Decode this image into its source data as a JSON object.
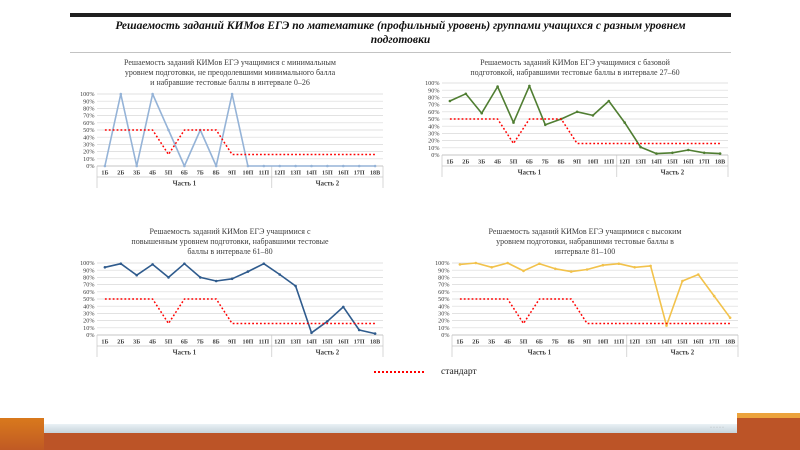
{
  "slide": {
    "title": "Решаемость заданий КИМов ЕГЭ по математике (профильный уровень) группами учащихся с разным уровнем подготовки",
    "title_lines": [
      "Решаемость заданий КИМов ЕГЭ по математике (профильный уровень) группами учащихся с разным уровнем",
      "подготовки"
    ]
  },
  "legend": {
    "label": "стандарт",
    "series_name": "стандарт",
    "style": "dotted"
  },
  "footer": {
    "tiny_marks": "·····"
  },
  "theme": {
    "accent_band": "#BC5427",
    "left_block": "#D9791C",
    "right_gold": "#ECA33C",
    "standard_red": "#FF0000",
    "gridline": "#D9D9D9",
    "axis_line": "#B3B3B3",
    "chart_text": "#3D3D3D"
  },
  "chart_data": [
    {
      "type": "line",
      "title": "Решаемость заданий КИМов ЕГЭ учащимися с минимальным уровнем подготовки, не преодолевшими минимального балла и набравшие тестовые баллы в интервале 0–26",
      "title_lines": [
        "Решаемость заданий КИМов ЕГЭ учащимися с минимальным",
        "уровнем подготовки, не преодолевшими минимального балла",
        "и набравшие тестовые баллы в интервале 0–26"
      ],
      "categories": [
        "1Б",
        "2Б",
        "3Б",
        "4Б",
        "5П",
        "6Б",
        "7Б",
        "8Б",
        "9П",
        "10П",
        "11П",
        "12П",
        "13П",
        "14П",
        "15П",
        "16П",
        "17П",
        "18В"
      ],
      "x_group_labels": [
        {
          "label": "Часть 1",
          "count": 11
        },
        {
          "label": "Часть 2",
          "count": 7
        }
      ],
      "ylim": [
        0,
        100
      ],
      "ytick_labels": [
        "0%",
        "10%",
        "20%",
        "30%",
        "40%",
        "50%",
        "60%",
        "70%",
        "80%",
        "90%",
        "100%"
      ],
      "grid": true,
      "series": [
        {
          "name": "0–26",
          "color": "#95B3D7",
          "marker": true,
          "values": [
            0,
            100,
            0,
            100,
            50,
            0,
            50,
            0,
            100,
            0,
            0,
            0,
            0,
            0,
            0,
            0,
            0,
            0
          ]
        },
        {
          "name": "стандарт",
          "color": "#FF0000",
          "style": "dotted",
          "values": [
            50,
            50,
            50,
            50,
            16,
            50,
            50,
            50,
            16,
            16,
            16,
            16,
            16,
            16,
            16,
            16,
            16,
            16
          ]
        }
      ]
    },
    {
      "type": "line",
      "title": "Решаемость заданий КИМов ЕГЭ учащимися с базовой подготовкой, набравшими тестовые баллы в интервале 27–60",
      "title_lines": [
        "Решаемость заданий КИМов ЕГЭ учащимися с базовой",
        "подготовкой,  набравшими тестовые баллы в интервале 27–60"
      ],
      "categories": [
        "1Б",
        "2Б",
        "3Б",
        "4Б",
        "5П",
        "6Б",
        "7Б",
        "8Б",
        "9П",
        "10П",
        "11П",
        "12П",
        "13П",
        "14П",
        "15П",
        "16П",
        "17П",
        "18В"
      ],
      "x_group_labels": [
        {
          "label": "Часть 1",
          "count": 11
        },
        {
          "label": "Часть 2",
          "count": 7
        }
      ],
      "ylim": [
        0,
        100
      ],
      "ytick_labels": [
        "0%",
        "10%",
        "20%",
        "30%",
        "40%",
        "50%",
        "60%",
        "70%",
        "80%",
        "90%",
        "100%"
      ],
      "grid": true,
      "series": [
        {
          "name": "27–60",
          "color": "#507E32",
          "marker": true,
          "values": [
            75,
            85,
            58,
            95,
            45,
            96,
            42,
            50,
            60,
            55,
            75,
            45,
            11,
            2,
            3,
            7,
            3,
            2
          ]
        },
        {
          "name": "стандарт",
          "color": "#FF0000",
          "style": "dotted",
          "values": [
            50,
            50,
            50,
            50,
            16,
            50,
            50,
            50,
            16,
            16,
            16,
            16,
            16,
            16,
            16,
            16,
            16,
            16
          ]
        }
      ]
    },
    {
      "type": "line",
      "title": "Решаемость заданий КИМов ЕГЭ учащимися с повышенным уровнем подготовки, набравшими тестовые баллы в интервале 61–80",
      "title_lines": [
        "Решаемость заданий КИМов ЕГЭ учащимися  с",
        "повышенным уровнем подготовки,  набравшими тестовые",
        "баллы в интервале 61–80"
      ],
      "categories": [
        "1Б",
        "2Б",
        "3Б",
        "4Б",
        "5П",
        "6Б",
        "7Б",
        "8Б",
        "9П",
        "10П",
        "11П",
        "12П",
        "13П",
        "14П",
        "15П",
        "16П",
        "17П",
        "18В"
      ],
      "x_group_labels": [
        {
          "label": "Часть 1",
          "count": 11
        },
        {
          "label": "Часть 2",
          "count": 7
        }
      ],
      "ylim": [
        0,
        100
      ],
      "ytick_labels": [
        "0%",
        "10%",
        "20%",
        "30%",
        "40%",
        "50%",
        "60%",
        "70%",
        "80%",
        "90%",
        "100%"
      ],
      "grid": true,
      "series": [
        {
          "name": "61–80",
          "color": "#2F5B8D",
          "marker": true,
          "values": [
            94,
            99,
            83,
            98,
            80,
            99,
            80,
            75,
            78,
            88,
            99,
            84,
            68,
            3,
            19,
            39,
            7,
            2
          ]
        },
        {
          "name": "стандарт",
          "color": "#FF0000",
          "style": "dotted",
          "values": [
            50,
            50,
            50,
            50,
            16,
            50,
            50,
            50,
            16,
            16,
            16,
            16,
            16,
            16,
            16,
            16,
            16,
            16
          ]
        }
      ]
    },
    {
      "type": "line",
      "title": "Решаемость заданий КИМов ЕГЭ учащимися с высоким уровнем подготовки, набравшими тестовые баллы в интервале 81–100",
      "title_lines": [
        "Решаемость заданий КИМов ЕГЭ учащимися  с высоким",
        "уровнем подготовки,  набравшими тестовые баллы в",
        "интервале 81–100"
      ],
      "categories": [
        "1Б",
        "2Б",
        "3Б",
        "4Б",
        "5П",
        "6Б",
        "7Б",
        "8Б",
        "9П",
        "10П",
        "11П",
        "12П",
        "13П",
        "14П",
        "15П",
        "16П",
        "17П",
        "18В"
      ],
      "x_group_labels": [
        {
          "label": "Часть 1",
          "count": 11
        },
        {
          "label": "Часть 2",
          "count": 7
        }
      ],
      "ylim": [
        0,
        100
      ],
      "ytick_labels": [
        "0%",
        "10%",
        "20%",
        "30%",
        "40%",
        "50%",
        "60%",
        "70%",
        "80%",
        "90%",
        "100%"
      ],
      "grid": true,
      "series": [
        {
          "name": "81–100",
          "color": "#F2C24B",
          "marker": true,
          "values": [
            98,
            100,
            94,
            100,
            89,
            99,
            92,
            88,
            91,
            97,
            99,
            94,
            96,
            13,
            75,
            84,
            54,
            24
          ]
        },
        {
          "name": "стандарт",
          "color": "#FF0000",
          "style": "dotted",
          "values": [
            50,
            50,
            50,
            50,
            16,
            50,
            50,
            50,
            16,
            16,
            16,
            16,
            16,
            16,
            16,
            16,
            16,
            16
          ]
        }
      ]
    }
  ]
}
